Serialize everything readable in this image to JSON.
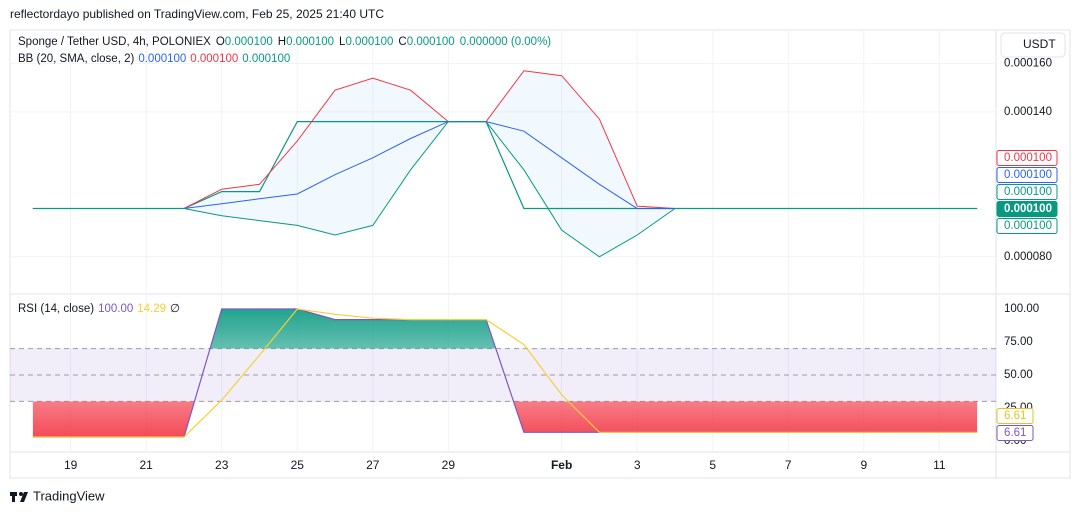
{
  "ui": {
    "published": "reflectordayo published on TradingView.com, Feb 25, 2025 21:40 UTC",
    "symbol": "Sponge / Tether USD, 4h, POLONIEX",
    "ohlc": [
      {
        "label": "O",
        "value": "0.000100"
      },
      {
        "label": "H",
        "value": "0.000100"
      },
      {
        "label": "L",
        "value": "0.000100"
      },
      {
        "label": "C",
        "value": "0.000100"
      }
    ],
    "change": "0.000000 (0.00%)",
    "bb_label": "BB (20, SMA, close, 2)",
    "bb_values": [
      {
        "text": "0.000100",
        "color": "#2962ff"
      },
      {
        "text": "0.000100",
        "color": "#f23645"
      },
      {
        "text": "0.000100",
        "color": "#089981"
      }
    ],
    "currency": "USDT",
    "price_badges": [
      {
        "text": "0.000100",
        "color": "#f23645",
        "filled": false
      },
      {
        "text": "0.000100",
        "color": "#2962ff",
        "filled": false
      },
      {
        "text": "0.000100",
        "color": "#089981",
        "filled": false
      },
      {
        "text": "0.000100",
        "color": "#089981",
        "filled": true
      },
      {
        "text": "0.000100",
        "color": "#089981",
        "filled": false
      }
    ],
    "rsi_label": "RSI (14, close)",
    "rsi_values": [
      {
        "text": "100.00",
        "color": "#7e57c2"
      },
      {
        "text": "14.29",
        "color": "#f7d038"
      },
      {
        "text": "∅",
        "color": "#131722"
      }
    ],
    "rsi_badges": [
      {
        "text": "6.61",
        "color": "#e6c21f"
      },
      {
        "text": "6.61",
        "color": "#7e57c2"
      }
    ],
    "brand": "TradingView"
  },
  "chart_data": [
    {
      "type": "line",
      "ylim": [
        6.5e-05,
        0.0001735
      ],
      "yticks": [
        {
          "value": 0.00016,
          "label": "0.000160"
        },
        {
          "value": 0.00014,
          "label": "0.000140"
        },
        {
          "value": 8e-05,
          "label": "0.000080"
        }
      ],
      "grid": true,
      "series": [
        {
          "color": "#089981",
          "values": [
            0.0001,
            0.0001,
            0.0001,
            0.0001,
            0.0001,
            0.000107,
            0.000107,
            0.000136,
            0.000136,
            0.000136,
            0.000136,
            0.000136,
            0.000136,
            0.0001,
            0.0001,
            0.0001,
            0.0001,
            0.0001,
            0.0001,
            0.0001,
            0.0001,
            0.0001,
            0.0001,
            0.0001,
            0.0001,
            0.0001
          ]
        },
        {
          "color": "#f23645",
          "values": [
            0.0001,
            0.0001,
            0.0001,
            0.0001,
            0.0001,
            0.000108,
            0.00011,
            0.000128,
            0.000149,
            0.000154,
            0.000149,
            0.000136,
            0.000136,
            0.000157,
            0.000155,
            0.000137,
            0.000101,
            0.0001,
            0.0001,
            0.0001,
            0.0001,
            0.0001,
            0.0001,
            0.0001,
            0.0001,
            0.0001
          ]
        },
        {
          "color": "#2962ff",
          "values": [
            0.0001,
            0.0001,
            0.0001,
            0.0001,
            0.0001,
            0.000102,
            0.000104,
            0.000106,
            0.000114,
            0.000121,
            0.000129,
            0.000136,
            0.000136,
            0.000132,
            0.000121,
            0.00011,
            0.0001,
            0.0001,
            0.0001,
            0.0001,
            0.0001,
            0.0001,
            0.0001,
            0.0001,
            0.0001,
            0.0001
          ]
        },
        {
          "color": "#089981",
          "values": [
            0.0001,
            0.0001,
            0.0001,
            0.0001,
            0.0001,
            9.7e-05,
            9.5e-05,
            9.3e-05,
            8.9e-05,
            9.3e-05,
            0.000116,
            0.000136,
            0.000136,
            0.000116,
            9.1e-05,
            8e-05,
            8.9e-05,
            0.0001,
            0.0001,
            0.0001,
            0.0001,
            0.0001,
            0.0001,
            0.0001,
            0.0001,
            0.0001
          ]
        }
      ]
    },
    {
      "type": "line",
      "categories": [
        null,
        "19",
        null,
        "21",
        null,
        "23",
        null,
        "25",
        null,
        "27",
        null,
        "29",
        null,
        null,
        "Feb",
        null,
        "3",
        null,
        "5",
        null,
        "7",
        null,
        "9",
        null,
        "11",
        null
      ],
      "ylim": [
        -8.33,
        109.85
      ],
      "yticks": [
        {
          "value": 100,
          "label": "100.00"
        },
        {
          "value": 75,
          "label": "75.00"
        },
        {
          "value": 50,
          "label": "50.00"
        },
        {
          "value": 25,
          "label": "25.00"
        },
        {
          "value": 0,
          "label": "0.00"
        }
      ],
      "bands": [
        70,
        50,
        30
      ],
      "series": [
        {
          "color": "#7e57c2",
          "values": [
            3,
            3,
            3,
            3,
            3,
            100,
            100,
            100,
            92,
            92,
            92,
            92,
            92,
            6.61,
            6.61,
            6.61,
            6.61,
            6.61,
            6.61,
            6.61,
            6.61,
            6.61,
            6.61,
            6.61,
            6.61,
            6.61
          ]
        },
        {
          "color": "#f7d038",
          "values": [
            3,
            3,
            3,
            3,
            3,
            31,
            65,
            100,
            96,
            93,
            92,
            92,
            92,
            73,
            35,
            6.61,
            6.61,
            6.61,
            6.61,
            6.61,
            6.61,
            6.61,
            6.61,
            6.61,
            6.61,
            6.61
          ]
        }
      ]
    }
  ]
}
